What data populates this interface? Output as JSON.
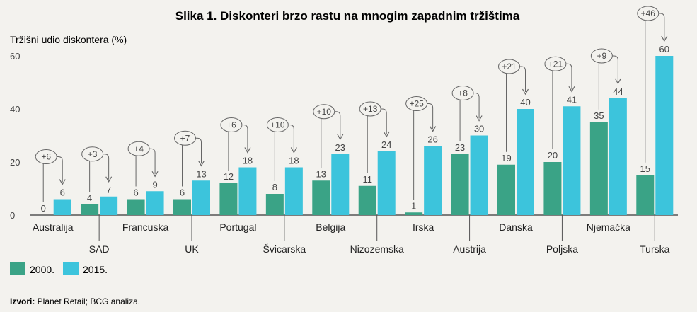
{
  "chart_data": {
    "type": "bar",
    "title": "Slika 1. Diskonteri brzo rastu na mnogim zapadnim tržištima",
    "ylabel": "Tržišni udio diskontera (%)",
    "xlabel": "",
    "ylim": [
      0,
      60
    ],
    "yticks": [
      "0",
      "20",
      "40",
      "60"
    ],
    "categories": [
      "Australija",
      "SAD",
      "Francuska",
      "UK",
      "Portugal",
      "Švicarska",
      "Belgija",
      "Nizozemska",
      "Irska",
      "Austrija",
      "Danska",
      "Poljska",
      "Njemačka",
      "Turska"
    ],
    "series": [
      {
        "name": "2000.",
        "color": "#3aa386",
        "values": [
          0,
          4,
          6,
          6,
          12,
          8,
          13,
          11,
          1,
          23,
          19,
          20,
          35,
          15
        ]
      },
      {
        "name": "2015.",
        "color": "#3cc4dc",
        "values": [
          6,
          7,
          9,
          13,
          18,
          18,
          23,
          24,
          26,
          30,
          40,
          41,
          44,
          60
        ]
      }
    ],
    "changes": [
      "+6",
      "+3",
      "+4",
      "+7",
      "+6",
      "+10",
      "+10",
      "+13",
      "+25",
      "+8",
      "+21",
      "+21",
      "+9",
      "+46"
    ],
    "legend_position": "bottom-left",
    "grid": false
  },
  "source": {
    "label": "Izvori:",
    "text": " Planet Retail; BCG analiza."
  }
}
